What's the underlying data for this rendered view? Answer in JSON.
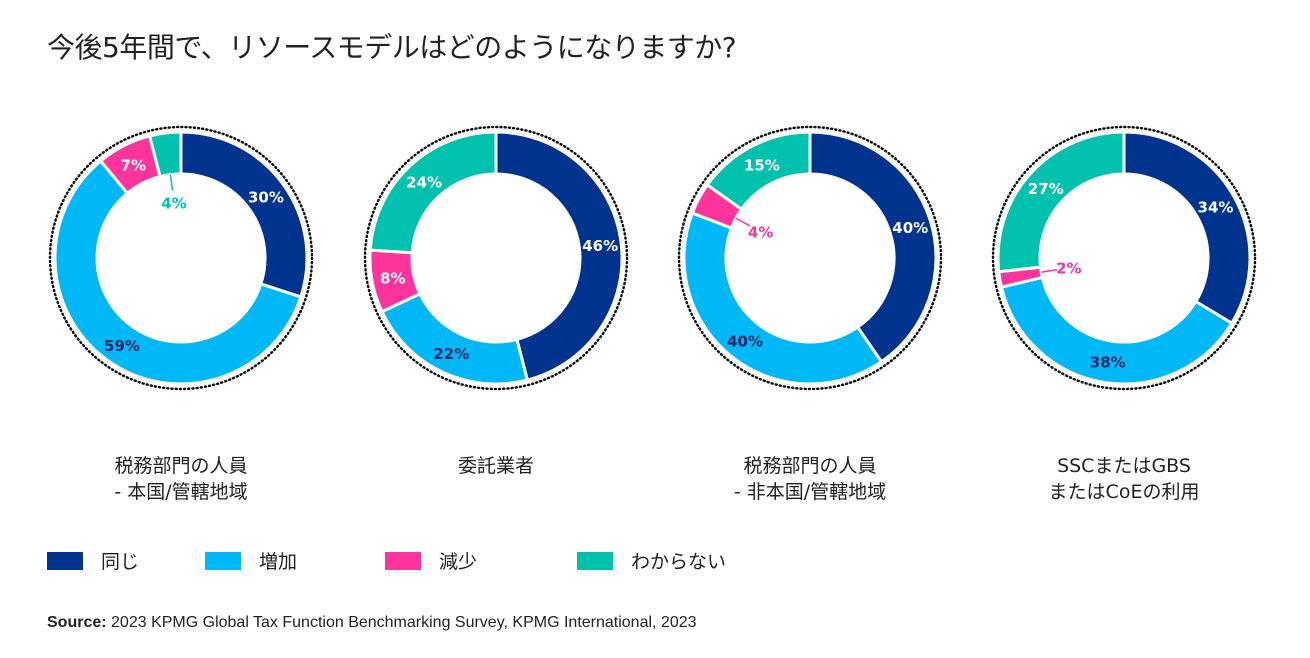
{
  "chart_data": {
    "type": "pie",
    "title": "今後5年間で、リソースモデルはどのようになりますか?",
    "legend": {
      "placement": "bottom-left",
      "entries": [
        "同じ",
        "増加",
        "減少",
        "わからない"
      ]
    },
    "colors": [
      "#00338D",
      "#00B8F5",
      "#FD349C",
      "#00C0AE"
    ],
    "charts": [
      {
        "label_lines": [
          "税務部門の人員",
          "- 本国/管轄地域"
        ],
        "values": [
          30,
          59,
          7,
          4
        ]
      },
      {
        "label_lines": [
          "委託業者"
        ],
        "values": [
          46,
          22,
          8,
          24
        ]
      },
      {
        "label_lines": [
          "税務部門の人員",
          "- 非本国/管轄地域"
        ],
        "values": [
          40,
          40,
          4,
          15
        ]
      },
      {
        "label_lines": [
          "SSCまたはGBS",
          "またはCoEの利用"
        ],
        "values": [
          34,
          38,
          2,
          27
        ]
      }
    ]
  },
  "source": {
    "label": "Source:",
    "text": " 2023 KPMG Global Tax Function Benchmarking Survey, KPMG International, 2023"
  }
}
